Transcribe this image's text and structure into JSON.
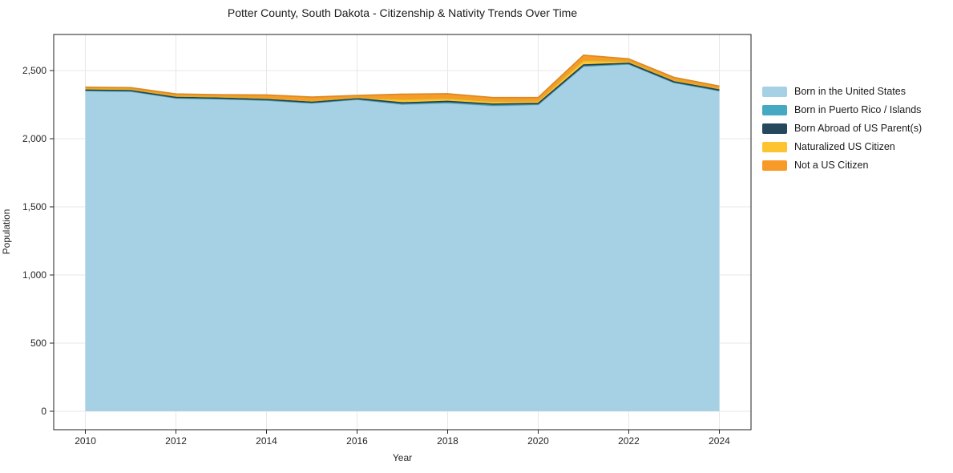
{
  "chart_data": {
    "type": "area",
    "stacked": true,
    "title": "Potter County, South Dakota - Citizenship & Nativity Trends Over Time",
    "xlabel": "Year",
    "ylabel": "Population",
    "x": [
      2010,
      2011,
      2012,
      2013,
      2014,
      2015,
      2016,
      2017,
      2018,
      2019,
      2020,
      2021,
      2022,
      2023,
      2024
    ],
    "series": [
      {
        "name": "Born in the United States",
        "color": "#a6d1e5",
        "values": [
          2352,
          2348,
          2298,
          2292,
          2282,
          2262,
          2288,
          2252,
          2262,
          2242,
          2250,
          2532,
          2548,
          2412,
          2352
        ]
      },
      {
        "name": "Born in Puerto Rico / Islands",
        "color": "#45a9c2",
        "values": [
          1,
          1,
          1,
          1,
          1,
          1,
          2,
          4,
          4,
          4,
          3,
          1,
          1,
          1,
          1
        ]
      },
      {
        "name": "Born Abroad of US Parent(s)",
        "color": "#26485c",
        "values": [
          5,
          5,
          5,
          5,
          6,
          5,
          5,
          7,
          8,
          8,
          6,
          8,
          5,
          5,
          5
        ]
      },
      {
        "name": "Naturalized US Citizen",
        "color": "#fdc330",
        "values": [
          8,
          8,
          9,
          9,
          8,
          10,
          7,
          26,
          22,
          21,
          18,
          34,
          14,
          12,
          10
        ]
      },
      {
        "name": "Not a US Citizen",
        "color": "#f89a27",
        "values": [
          13,
          13,
          16,
          16,
          24,
          28,
          16,
          38,
          34,
          27,
          26,
          38,
          18,
          20,
          18
        ]
      }
    ],
    "xlim": [
      2009.3,
      2024.7
    ],
    "ylim": [
      -135,
      2765
    ],
    "x_ticks": [
      {
        "value": 2010,
        "label": "2010"
      },
      {
        "value": 2012,
        "label": "2012"
      },
      {
        "value": 2014,
        "label": "2014"
      },
      {
        "value": 2016,
        "label": "2016"
      },
      {
        "value": 2018,
        "label": "2018"
      },
      {
        "value": 2020,
        "label": "2020"
      },
      {
        "value": 2022,
        "label": "2022"
      },
      {
        "value": 2024,
        "label": "2024"
      }
    ],
    "y_ticks": [
      {
        "value": 0,
        "label": "0"
      },
      {
        "value": 500,
        "label": "500"
      },
      {
        "value": 1000,
        "label": "1,000"
      },
      {
        "value": 1500,
        "label": "1,500"
      },
      {
        "value": 2000,
        "label": "2,000"
      },
      {
        "value": 2500,
        "label": "2,500"
      }
    ],
    "grid": true,
    "grid_color": "#e7e7e7",
    "border_color": "#1f1f1f",
    "tick_text_color": "#262626",
    "legend_position": "right"
  }
}
